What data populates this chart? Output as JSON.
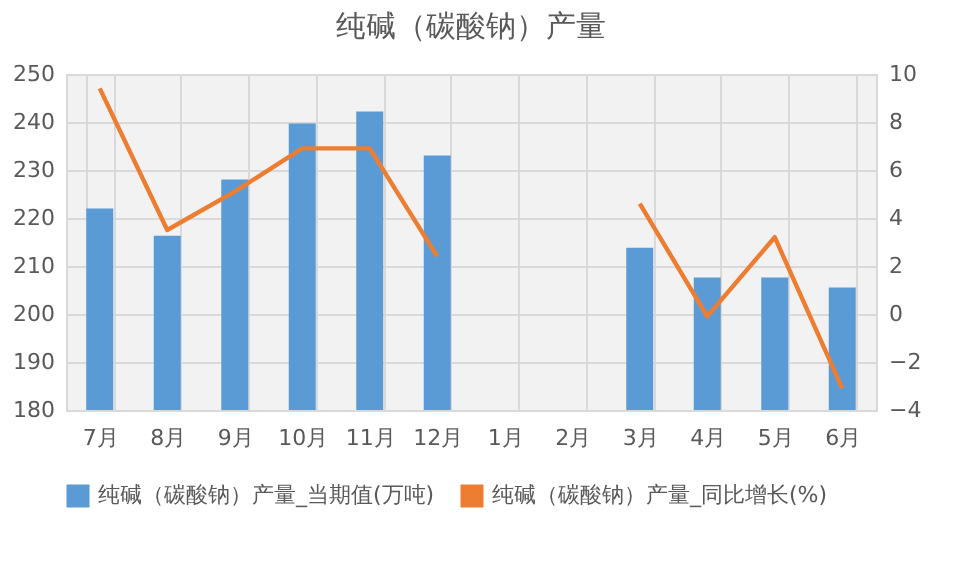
{
  "chart_data": {
    "type": "bar",
    "title": "纯碱（碳酸钠）产量",
    "categories": [
      "7月",
      "8月",
      "9月",
      "10月",
      "11月",
      "12月",
      "1月",
      "2月",
      "3月",
      "4月",
      "5月",
      "6月"
    ],
    "series": [
      {
        "name": "纯碱（碳酸钠）产量_当期值(万吨)",
        "color": "#5b9bd5",
        "values": [
          222,
          216.3,
          228,
          239.7,
          242.2,
          233,
          null,
          null,
          213.8,
          207.6,
          207.6,
          205.5
        ]
      },
      {
        "name": "纯碱（碳酸钠）产量_同比增长(%)",
        "type": "line",
        "axis": "y2",
        "color": "#ed7d31",
        "values": [
          9.4,
          3.5,
          5.1,
          6.9,
          6.9,
          2.4,
          null,
          null,
          4.6,
          -0.1,
          3.2,
          -3.1
        ]
      }
    ],
    "ylim": [
      180,
      250
    ],
    "yticks": [
      180,
      190,
      200,
      210,
      220,
      230,
      240,
      250
    ],
    "y2lim": [
      -4,
      10
    ],
    "y2ticks": [
      -4,
      -2,
      0,
      2,
      4,
      6,
      8,
      10
    ],
    "grid": true,
    "legend": "bottom"
  }
}
